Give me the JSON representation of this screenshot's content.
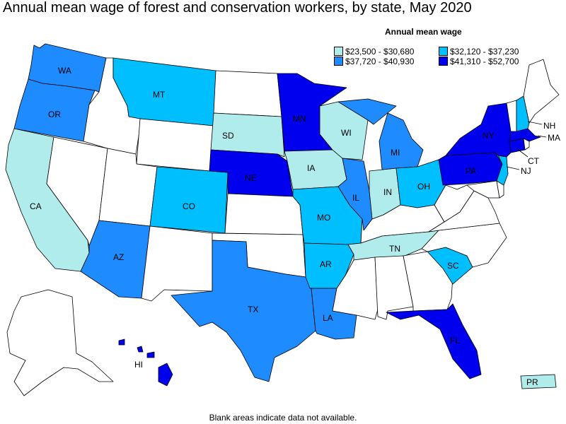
{
  "title": "Annual mean wage of forest and conservation workers, by state, May 2020",
  "legend": {
    "title": "Annual mean wage",
    "items": [
      {
        "label": "$23,500 - $30,680",
        "color": "#b0ecec"
      },
      {
        "label": "$32,120 - $37,230",
        "color": "#00bfff"
      },
      {
        "label": "$37,720 - $40,930",
        "color": "#1e8cff"
      },
      {
        "label": "$41,310 - $52,700",
        "color": "#0000ee"
      }
    ]
  },
  "footnote": "Blank areas indicate data not available.",
  "colors": {
    "no_data": "#ffffff",
    "outline": "#000000"
  },
  "states": {
    "WA": {
      "label": "WA",
      "bin": 2
    },
    "OR": {
      "label": "OR",
      "bin": 2
    },
    "CA": {
      "label": "CA",
      "bin": 0
    },
    "MT": {
      "label": "MT",
      "bin": 1
    },
    "SD": {
      "label": "SD",
      "bin": 0
    },
    "MN": {
      "label": "MN",
      "bin": 3
    },
    "WI": {
      "label": "WI",
      "bin": 0
    },
    "MI": {
      "label": "MI",
      "bin": 2
    },
    "NE": {
      "label": "NE",
      "bin": 3
    },
    "IA": {
      "label": "IA",
      "bin": 0
    },
    "IL": {
      "label": "IL",
      "bin": 2
    },
    "IN": {
      "label": "IN",
      "bin": 0
    },
    "OH": {
      "label": "OH",
      "bin": 1
    },
    "CO": {
      "label": "CO",
      "bin": 1
    },
    "MO": {
      "label": "MO",
      "bin": 1
    },
    "AZ": {
      "label": "AZ",
      "bin": 2
    },
    "AR": {
      "label": "AR",
      "bin": 1
    },
    "TN": {
      "label": "TN",
      "bin": 0
    },
    "TX": {
      "label": "TX",
      "bin": 2
    },
    "LA": {
      "label": "LA",
      "bin": 2
    },
    "SC": {
      "label": "SC",
      "bin": 1
    },
    "FL": {
      "label": "FL",
      "bin": 3
    },
    "NY": {
      "label": "NY",
      "bin": 3
    },
    "PA": {
      "label": "PA",
      "bin": 3
    },
    "NJ": {
      "label": "NJ",
      "bin": 1
    },
    "CT": {
      "label": "CT",
      "bin": 3
    },
    "MA": {
      "label": "MA",
      "bin": 3
    },
    "NH": {
      "label": "NH",
      "bin": 1
    },
    "HI": {
      "label": "HI",
      "bin": 3
    },
    "PR": {
      "label": "PR",
      "bin": 0
    },
    "ID": {
      "bin": null
    },
    "NV": {
      "bin": null
    },
    "UT": {
      "bin": null
    },
    "WY": {
      "bin": null
    },
    "ND": {
      "bin": null
    },
    "KS": {
      "bin": null
    },
    "OK": {
      "bin": null
    },
    "NM": {
      "bin": null
    },
    "KY": {
      "bin": null
    },
    "MS": {
      "bin": null
    },
    "AL": {
      "bin": null
    },
    "GA": {
      "bin": null
    },
    "NC": {
      "bin": null
    },
    "VA": {
      "bin": null
    },
    "WV": {
      "bin": null
    },
    "MD": {
      "bin": null
    },
    "DE": {
      "bin": null
    },
    "VT": {
      "bin": null
    },
    "ME": {
      "bin": null
    },
    "RI": {
      "bin": null
    },
    "AK": {
      "bin": null
    }
  }
}
